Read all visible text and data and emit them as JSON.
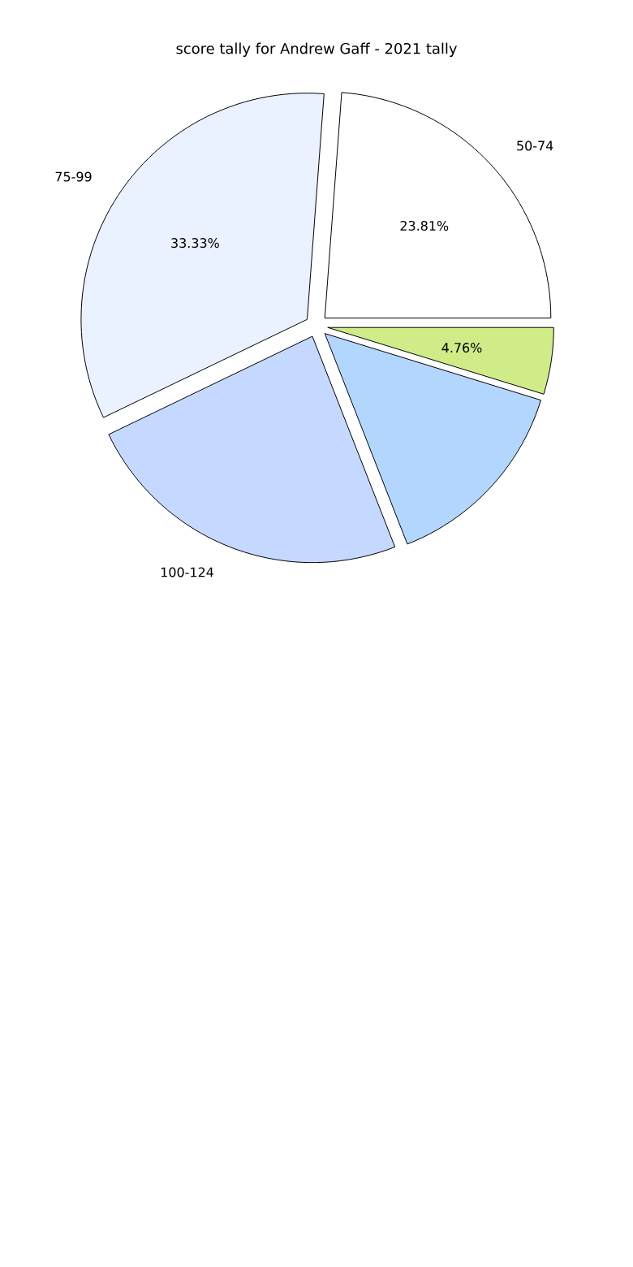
{
  "chart_data": {
    "type": "pie",
    "title": "score tally for Andrew Gaff - 2021 tally",
    "categories": [
      "50-74",
      "75-99",
      "100-124",
      null,
      null
    ],
    "values": [
      23.81,
      33.33,
      23.81,
      14.29,
      4.76
    ],
    "colors": [
      "#ffffff",
      "#eaf1ff",
      "#c5d8ff",
      "#b3d6ff",
      "#cfec88"
    ],
    "value_labels": [
      "23.81%",
      "33.33%",
      null,
      null,
      "4.76%"
    ]
  }
}
